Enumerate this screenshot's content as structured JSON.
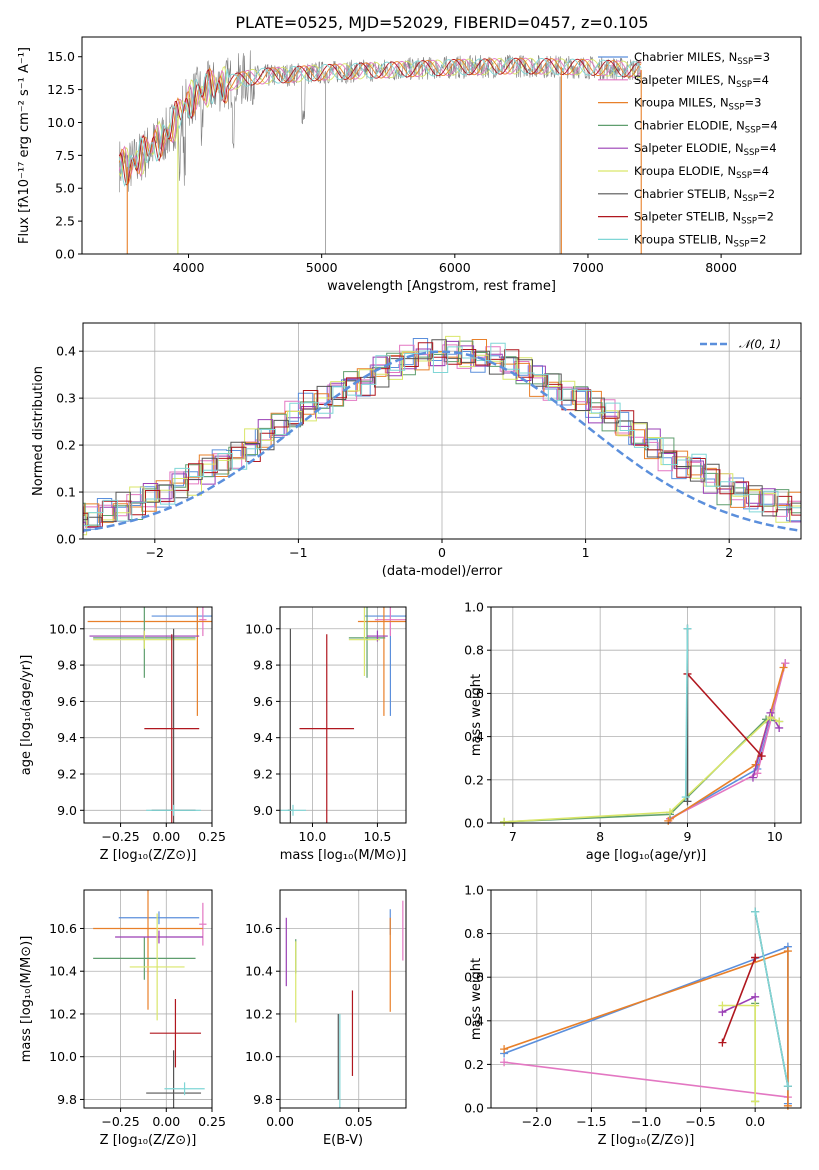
{
  "title": "PLATE=0525, MJD=52029, FIBERID=0457, z=0.105",
  "colors": {
    "Chabrier MILES": "#5b8fdc",
    "Salpeter MILES": "#e377c2",
    "Kroupa MILES": "#e8802a",
    "Chabrier ELODIE": "#5f9e6e",
    "Salpeter ELODIE": "#9a3fb5",
    "Kroupa ELODIE": "#d9e66a",
    "Chabrier STELIB": "#555555",
    "Salpeter STELIB": "#b0171f",
    "Kroupa STELIB": "#7fd6d6",
    "data": "#808080",
    "normal": "#5b8fdc"
  },
  "chart_data": [
    {
      "id": "spectrum",
      "type": "line",
      "title": "PLATE=0525, MJD=52029, FIBERID=0457, z=0.105",
      "xlabel": "wavelength [Angstrom, rest frame]",
      "ylabel": "Flux [fλ10⁻¹⁷ erg cm⁻² s⁻¹ A⁻¹]",
      "xlim": [
        3200,
        8600
      ],
      "ylim": [
        0,
        16.5
      ],
      "xticks": [
        "4000",
        "5000",
        "6000",
        "7000",
        "8000"
      ],
      "yticks": [
        "0.0",
        "2.5",
        "5.0",
        "7.5",
        "10.0",
        "12.5",
        "15.0"
      ],
      "legend_position": "right",
      "legend": [
        {
          "model": "Chabrier MILES",
          "nssp": "3"
        },
        {
          "model": "Salpeter MILES",
          "nssp": "4"
        },
        {
          "model": "Kroupa MILES",
          "nssp": "3"
        },
        {
          "model": "Chabrier ELODIE",
          "nssp": "4"
        },
        {
          "model": "Salpeter ELODIE",
          "nssp": "4"
        },
        {
          "model": "Kroupa ELODIE",
          "nssp": "4"
        },
        {
          "model": "Chabrier STELIB",
          "nssp": "2"
        },
        {
          "model": "Salpeter STELIB",
          "nssp": "2"
        },
        {
          "model": "Kroupa STELIB",
          "nssp": "2"
        }
      ],
      "nssp_label": "N",
      "nssp_sub": "SSP",
      "continuum": {
        "x": [
          3480,
          3550,
          3700,
          3850,
          3950,
          4050,
          4150,
          4300,
          4500,
          4700,
          5000,
          5500,
          6000,
          6500,
          7000,
          7400
        ],
        "y": [
          6.8,
          6.6,
          7.9,
          9.2,
          11.0,
          12.1,
          12.6,
          13.0,
          13.5,
          13.6,
          13.8,
          14.0,
          14.2,
          14.3,
          14.2,
          14.0
        ]
      }
    },
    {
      "id": "residuals",
      "type": "step",
      "xlabel": "(data-model)/error",
      "ylabel": "Normed distribution",
      "xlim": [
        -2.5,
        2.5
      ],
      "ylim": [
        0,
        0.46
      ],
      "xticks": [
        "−2",
        "−1",
        "0",
        "1",
        "2"
      ],
      "yticks": [
        "0.0",
        "0.1",
        "0.2",
        "0.3",
        "0.4"
      ],
      "reference": {
        "name": "𝒩(0, 1)",
        "mean": 0,
        "sigma": 1
      },
      "bin_width": 0.1,
      "base": [
        0.02,
        0.025,
        0.03,
        0.04,
        0.04,
        0.045,
        0.055,
        0.065,
        0.075,
        0.09,
        0.1,
        0.12,
        0.13,
        0.15,
        0.16,
        0.18,
        0.2,
        0.22,
        0.24,
        0.26,
        0.28,
        0.29,
        0.31,
        0.33,
        0.34,
        0.36,
        0.37,
        0.38,
        0.39,
        0.39,
        0.4,
        0.39,
        0.39,
        0.38,
        0.37,
        0.36,
        0.34,
        0.33,
        0.31,
        0.3,
        0.28,
        0.26,
        0.24,
        0.22,
        0.2,
        0.18,
        0.16,
        0.15,
        0.13,
        0.11,
        0.1,
        0.09,
        0.08,
        0.07,
        0.065,
        0.055,
        0.045,
        0.04,
        0.035,
        0.03
      ]
    },
    {
      "id": "age-vs-Z",
      "type": "errorbar",
      "xlabel": "Z [log₁₀(Z/Z⊙)]",
      "ylabel": "age  [log₁₀(age/yr)]",
      "xlim": [
        -0.45,
        0.25
      ],
      "ylim": [
        8.93,
        10.12
      ],
      "xticks": [
        "−0.25",
        "0.00",
        "0.25"
      ],
      "yticks": [
        "9.0",
        "9.2",
        "9.4",
        "9.6",
        "9.8",
        "10.0"
      ],
      "points": [
        {
          "model": "Chabrier MILES",
          "x": 0.17,
          "xerr": 0.25,
          "y": 10.07,
          "yerr": 0.08
        },
        {
          "model": "Salpeter MILES",
          "x": 0.2,
          "xerr": 0.02,
          "y": 10.05,
          "yerr": 0.09
        },
        {
          "model": "Kroupa MILES",
          "x": 0.17,
          "xerr": 0.6,
          "y": 10.04,
          "yerr": 0.52
        },
        {
          "model": "Chabrier ELODIE",
          "x": -0.12,
          "xerr": 0.28,
          "y": 9.95,
          "yerr": 0.22
        },
        {
          "model": "Salpeter ELODIE",
          "x": -0.12,
          "xerr": 0.3,
          "y": 9.96,
          "yerr": 0.03
        },
        {
          "model": "Kroupa ELODIE",
          "x": -0.12,
          "xerr": 0.28,
          "y": 9.94,
          "yerr": 0.05
        },
        {
          "model": "Chabrier STELIB",
          "x": 0.04,
          "xerr": 0.12,
          "y": 9.0,
          "yerr": 1.0
        },
        {
          "model": "Salpeter STELIB",
          "x": 0.03,
          "xerr": 0.15,
          "y": 9.45,
          "yerr": 0.52
        },
        {
          "model": "Kroupa STELIB",
          "x": 0.04,
          "xerr": 0.15,
          "y": 9.0,
          "yerr": 0.03
        }
      ]
    },
    {
      "id": "age-vs-mass",
      "type": "errorbar",
      "xlabel": "mass [log₁₀(M/M⊙)]",
      "ylabel": "",
      "xlim": [
        9.75,
        10.72
      ],
      "ylim": [
        8.93,
        10.12
      ],
      "xticks": [
        "10.0",
        "10.5"
      ],
      "yticks": [
        "9.0",
        "9.2",
        "9.4",
        "9.6",
        "9.8",
        "10.0"
      ],
      "points": [
        {
          "model": "Chabrier MILES",
          "x": 10.6,
          "xerr": 0.2,
          "y": 10.07,
          "yerr": 0.55
        },
        {
          "model": "Salpeter MILES",
          "x": 10.6,
          "xerr": 0.12,
          "y": 10.05,
          "yerr": 0.09
        },
        {
          "model": "Kroupa MILES",
          "x": 10.55,
          "xerr": 0.2,
          "y": 10.04,
          "yerr": 0.52
        },
        {
          "model": "Chabrier ELODIE",
          "x": 10.42,
          "xerr": 0.14,
          "y": 9.95,
          "yerr": 0.22
        },
        {
          "model": "Salpeter ELODIE",
          "x": 10.5,
          "xerr": 0.08,
          "y": 9.96,
          "yerr": 0.03
        },
        {
          "model": "Kroupa ELODIE",
          "x": 10.4,
          "xerr": 0.12,
          "y": 9.94,
          "yerr": 0.2
        },
        {
          "model": "Chabrier STELIB",
          "x": 9.83,
          "xerr": 0.02,
          "y": 9.0,
          "yerr": 1.0
        },
        {
          "model": "Salpeter STELIB",
          "x": 10.11,
          "xerr": 0.21,
          "y": 9.45,
          "yerr": 0.52
        },
        {
          "model": "Kroupa STELIB",
          "x": 9.85,
          "xerr": 0.1,
          "y": 9.0,
          "yerr": 0.03
        }
      ]
    },
    {
      "id": "weight-vs-age",
      "type": "line",
      "xlabel": "age  [log₁₀(age/yr)]",
      "ylabel": "mass weight",
      "xlim": [
        6.75,
        10.3
      ],
      "ylim": [
        0,
        1.0
      ],
      "xticks": [
        "7",
        "8",
        "9",
        "10"
      ],
      "yticks": [
        "0.0",
        "0.2",
        "0.4",
        "0.6",
        "0.8",
        "1.0"
      ],
      "series": [
        {
          "model": "Chabrier MILES",
          "x": [
            8.8,
            9.8,
            10.12
          ],
          "y": [
            0.02,
            0.25,
            0.74
          ]
        },
        {
          "model": "Salpeter MILES",
          "x": [
            8.8,
            9.8,
            10.12
          ],
          "y": [
            0.02,
            0.23,
            0.74
          ]
        },
        {
          "model": "Kroupa MILES",
          "x": [
            8.78,
            9.78,
            10.1
          ],
          "y": [
            0.01,
            0.27,
            0.72
          ]
        },
        {
          "model": "Chabrier ELODIE",
          "x": [
            6.9,
            8.8,
            9.9,
            10.05
          ],
          "y": [
            0.005,
            0.04,
            0.48,
            0.47
          ]
        },
        {
          "model": "Salpeter ELODIE",
          "x": [
            9.75,
            9.95,
            10.05
          ],
          "y": [
            0.21,
            0.51,
            0.44
          ]
        },
        {
          "model": "Kroupa ELODIE",
          "x": [
            6.9,
            8.8,
            9.95,
            10.05
          ],
          "y": [
            0.005,
            0.05,
            0.49,
            0.47
          ]
        },
        {
          "model": "Chabrier STELIB",
          "x": [
            9.0,
            9.0
          ],
          "y": [
            0.1,
            0.9
          ]
        },
        {
          "model": "Salpeter STELIB",
          "x": [
            9.0,
            9.85
          ],
          "y": [
            0.69,
            0.31
          ]
        },
        {
          "model": "Kroupa STELIB",
          "x": [
            8.98,
            9.0
          ],
          "y": [
            0.12,
            0.9
          ]
        }
      ]
    },
    {
      "id": "mass-vs-Z",
      "type": "errorbar",
      "xlabel": "Z [log₁₀(Z/Z⊙)]",
      "ylabel": "mass [log₁₀(M/M⊙)]",
      "xlim": [
        -0.45,
        0.25
      ],
      "ylim": [
        9.76,
        10.78
      ],
      "xticks": [
        "−0.25",
        "0.00",
        "0.25"
      ],
      "yticks": [
        "9.8",
        "10.0",
        "10.2",
        "10.4",
        "10.6"
      ],
      "points": [
        {
          "model": "Chabrier MILES",
          "x": -0.04,
          "xerr": 0.22,
          "y": 10.65,
          "yerr": 0.03
        },
        {
          "model": "Salpeter MILES",
          "x": 0.2,
          "xerr": 0.02,
          "y": 10.62,
          "yerr": 0.1
        },
        {
          "model": "Kroupa MILES",
          "x": -0.1,
          "xerr": 0.3,
          "y": 10.6,
          "yerr": 0.38
        },
        {
          "model": "Chabrier ELODIE",
          "x": -0.12,
          "xerr": 0.28,
          "y": 10.46,
          "yerr": 0.1
        },
        {
          "model": "Salpeter ELODIE",
          "x": -0.04,
          "xerr": 0.24,
          "y": 10.56,
          "yerr": 0.03
        },
        {
          "model": "Kroupa ELODIE",
          "x": -0.05,
          "xerr": 0.15,
          "y": 10.42,
          "yerr": 0.25
        },
        {
          "model": "Chabrier STELIB",
          "x": 0.04,
          "xerr": 0.15,
          "y": 9.83,
          "yerr": 0.2
        },
        {
          "model": "Salpeter STELIB",
          "x": 0.05,
          "xerr": 0.14,
          "y": 10.11,
          "yerr": 0.16
        },
        {
          "model": "Kroupa STELIB",
          "x": 0.1,
          "xerr": 0.11,
          "y": 9.85,
          "yerr": 0.03
        }
      ]
    },
    {
      "id": "mass-vs-ebv",
      "type": "errorbar",
      "xlabel": "E(B-V)",
      "ylabel": "",
      "xlim": [
        0.0,
        0.08
      ],
      "ylim": [
        9.76,
        10.78
      ],
      "xticks": [
        "0.00",
        "0.05"
      ],
      "yticks": [
        "9.8",
        "10.0",
        "10.2",
        "10.4",
        "10.6"
      ],
      "points": [
        {
          "model": "Chabrier MILES",
          "x": 0.07,
          "y": 10.63,
          "yerr": 0.06
        },
        {
          "model": "Salpeter MILES",
          "x": 0.078,
          "y": 10.59,
          "yerr": 0.14
        },
        {
          "model": "Kroupa MILES",
          "x": 0.07,
          "y": 10.43,
          "yerr": 0.22
        },
        {
          "model": "Chabrier ELODIE",
          "x": 0.01,
          "y": 10.47,
          "yerr": 0.08
        },
        {
          "model": "Salpeter ELODIE",
          "x": 0.004,
          "y": 10.49,
          "yerr": 0.16
        },
        {
          "model": "Kroupa ELODIE",
          "x": 0.01,
          "y": 10.35,
          "yerr": 0.19
        },
        {
          "model": "Chabrier STELIB",
          "x": 0.037,
          "y": 10.0,
          "yerr": 0.2
        },
        {
          "model": "Salpeter STELIB",
          "x": 0.046,
          "y": 10.11,
          "yerr": 0.2
        },
        {
          "model": "Kroupa STELIB",
          "x": 0.038,
          "y": 9.98,
          "yerr": 0.22
        }
      ]
    },
    {
      "id": "weight-vs-Z",
      "type": "line",
      "xlabel": "Z [log₁₀(Z/Z⊙)]",
      "ylabel": "mass weight",
      "xlim": [
        -2.42,
        0.42
      ],
      "ylim": [
        0,
        1.0
      ],
      "xticks": [
        "−2.0",
        "−1.5",
        "−1.0",
        "−0.5",
        "0.0"
      ],
      "yticks": [
        "0.0",
        "0.2",
        "0.4",
        "0.6",
        "0.8",
        "1.0"
      ],
      "series": [
        {
          "model": "Chabrier MILES",
          "x": [
            -2.3,
            0.3,
            0.3
          ],
          "y": [
            0.25,
            0.74,
            0.02
          ]
        },
        {
          "model": "Salpeter MILES",
          "x": [
            -2.3,
            0.3
          ],
          "y": [
            0.21,
            0.05
          ]
        },
        {
          "model": "Kroupa MILES",
          "x": [
            -2.3,
            0.3,
            0.3
          ],
          "y": [
            0.27,
            0.72,
            0.01
          ]
        },
        {
          "model": "Chabrier ELODIE",
          "x": [
            0.0,
            0.0
          ],
          "y": [
            0.48,
            0.03
          ]
        },
        {
          "model": "Salpeter ELODIE",
          "x": [
            -0.3,
            0.0
          ],
          "y": [
            0.44,
            0.51
          ]
        },
        {
          "model": "Kroupa ELODIE",
          "x": [
            -0.3,
            0.0,
            0.0
          ],
          "y": [
            0.47,
            0.47,
            0.03
          ]
        },
        {
          "model": "Chabrier STELIB",
          "x": [
            0.0,
            0.3
          ],
          "y": [
            0.9,
            0.1
          ]
        },
        {
          "model": "Salpeter STELIB",
          "x": [
            -0.3,
            0.0,
            0.0
          ],
          "y": [
            0.3,
            0.69,
            0.69
          ]
        },
        {
          "model": "Kroupa STELIB",
          "x": [
            0.0,
            0.3
          ],
          "y": [
            0.9,
            0.1
          ]
        }
      ]
    }
  ]
}
